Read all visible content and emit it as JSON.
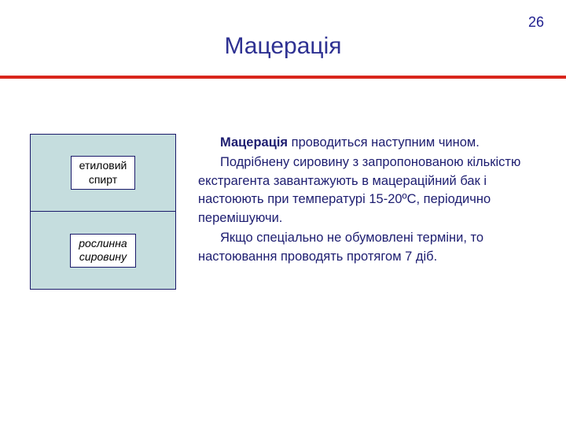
{
  "page_number": "26",
  "title": "Мацерація",
  "colors": {
    "title": "#2e3192",
    "body_text": "#1d1d70",
    "redline": "#d9261c",
    "cell_bg": "#c5ddde",
    "cell_border": "#1a1a6a",
    "label_bg": "#ffffff"
  },
  "diagram": {
    "cells": [
      {
        "label_line1": "етиловий",
        "label_line2": "спирт",
        "italic": false
      },
      {
        "label_line1": "рослинна",
        "label_line2": "сировину",
        "italic": true
      }
    ]
  },
  "paragraphs": {
    "p1_bold": "Мацерація",
    "p1_rest": " проводиться наступним чином.",
    "p2": "Подрібнену сировину з запропонованою кількістю екстрагента завантажують в мацераційний бак і настоюють при температурі 15-20ºС, періодично перемішуючи.",
    "p3": "Якщо спеціально не обумовлені терміни, то настоювання проводять протягом 7 діб."
  }
}
